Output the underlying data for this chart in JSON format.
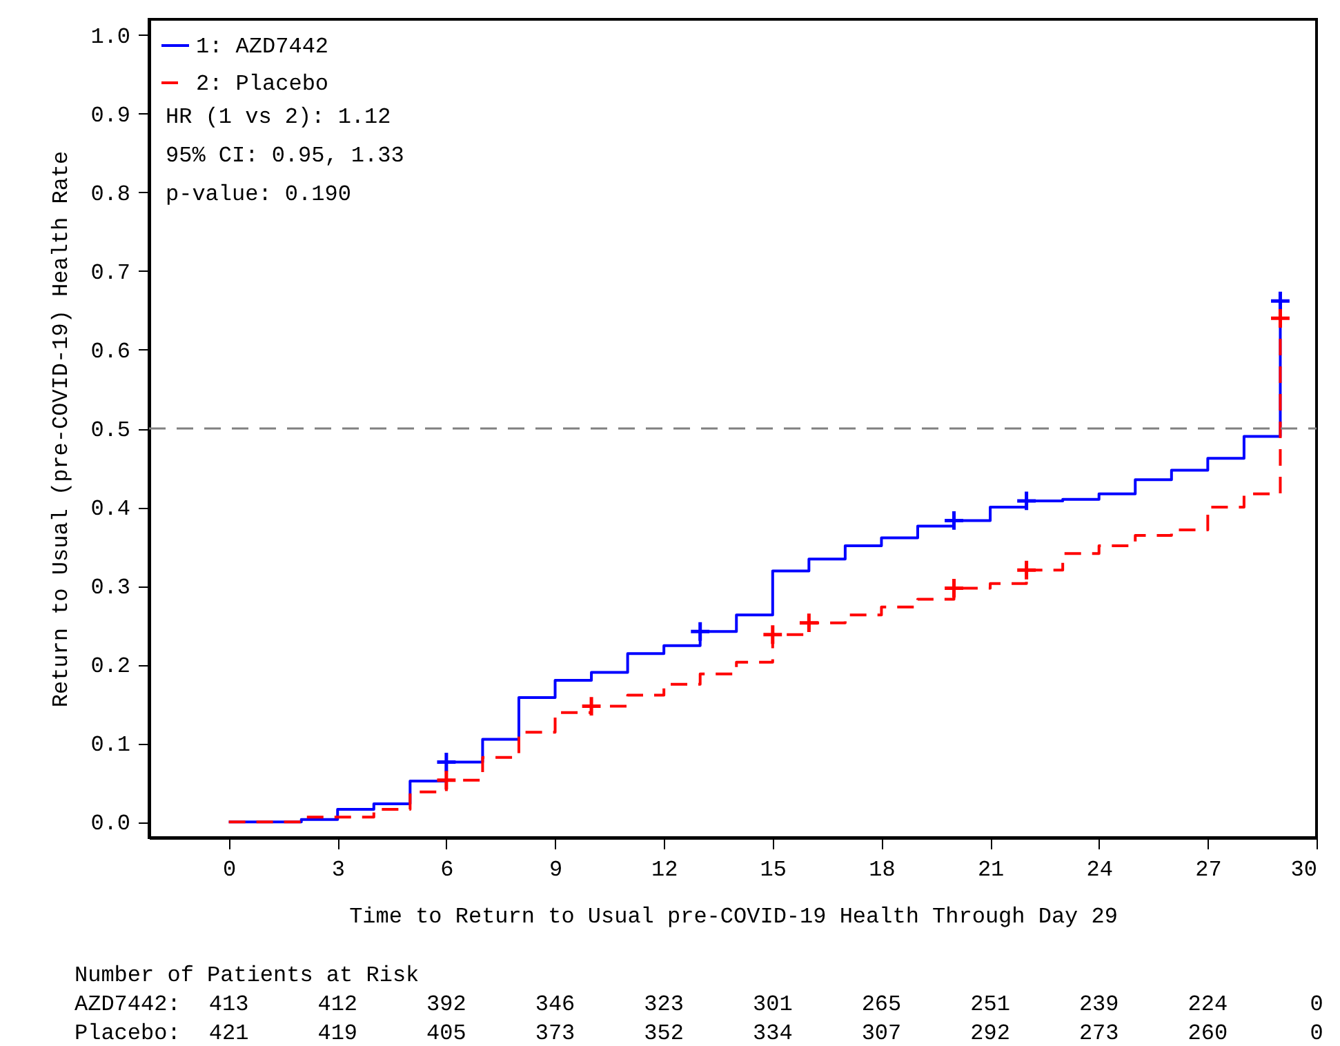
{
  "chart_data": {
    "type": "step",
    "xlabel": "Time to Return to Usual pre-COVID-19 Health Through Day 29",
    "ylabel": "Return to Usual (pre-COVID-19) Health Rate",
    "xlim": [
      -2.2,
      30
    ],
    "xticks": [
      0,
      3,
      6,
      9,
      12,
      15,
      18,
      21,
      24,
      27,
      30
    ],
    "ylim": [
      -0.02,
      1.02
    ],
    "yticks": [
      {
        "value": 0,
        "label": "0.0"
      },
      0.1,
      0.2,
      0.3,
      0.4,
      0.5,
      0.6,
      0.7,
      0.8,
      0.9,
      {
        "value": 1,
        "label": "1.0"
      }
    ],
    "grid": false,
    "legend": "top left",
    "series": [
      {
        "name": "1: AZD7442",
        "color": "#0000ff",
        "line_style": "solid",
        "x": [
          0,
          2,
          3,
          4,
          5,
          6,
          7,
          8,
          9,
          10,
          11,
          12,
          13,
          14,
          15,
          16,
          17,
          18,
          19,
          20,
          21,
          22,
          23,
          24,
          25,
          26,
          27,
          28,
          29
        ],
        "values": [
          0,
          0.003,
          0.016,
          0.023,
          0.052,
          0.076,
          0.105,
          0.158,
          0.18,
          0.19,
          0.214,
          0.224,
          0.242,
          0.263,
          0.319,
          0.334,
          0.351,
          0.361,
          0.376,
          0.383,
          0.4,
          0.408,
          0.41,
          0.417,
          0.435,
          0.447,
          0.462,
          0.49,
          0.662
        ]
      },
      {
        "name": "2: Placebo",
        "color": "#ff0000",
        "line_style": "dashed",
        "x": [
          0,
          2,
          4,
          5,
          6,
          7,
          8,
          9,
          10,
          11,
          12,
          13,
          14,
          15,
          16,
          17,
          18,
          19,
          20,
          21,
          22,
          23,
          24,
          25,
          26,
          27,
          28,
          29
        ],
        "values": [
          0,
          0.006,
          0.016,
          0.038,
          0.053,
          0.082,
          0.114,
          0.139,
          0.147,
          0.161,
          0.175,
          0.188,
          0.203,
          0.238,
          0.253,
          0.263,
          0.273,
          0.283,
          0.297,
          0.303,
          0.32,
          0.341,
          0.351,
          0.364,
          0.371,
          0.4,
          0.417,
          0.64
        ]
      },
      {
        "type": "scatter",
        "color": "#0000ff",
        "marker": "cross",
        "x": [
          6,
          13,
          20,
          22,
          29
        ],
        "values": [
          0.076,
          0.242,
          0.383,
          0.408,
          0.662
        ]
      },
      {
        "type": "scatter",
        "color": "#ff0000",
        "marker": "cross",
        "x": [
          6,
          10,
          15,
          16,
          20,
          22,
          29
        ],
        "values": [
          0.053,
          0.147,
          0.238,
          0.253,
          0.297,
          0.32,
          0.64
        ]
      }
    ],
    "ref_lines": [
      {
        "axis": "y",
        "value": 0.5,
        "color": "#808080",
        "line_style": "dashed"
      }
    ],
    "annotations": [
      "HR (1 vs 2): 1.12",
      "95% CI: 0.95, 1.33",
      "p-value: 0.190",
      "Number of Patients at Risk",
      "AZD7442: 413 412 392 346 323 301 265 251 239 224 0",
      "Placebo: 421 419 405 373 352 334 307 292 273 260 0"
    ]
  }
}
